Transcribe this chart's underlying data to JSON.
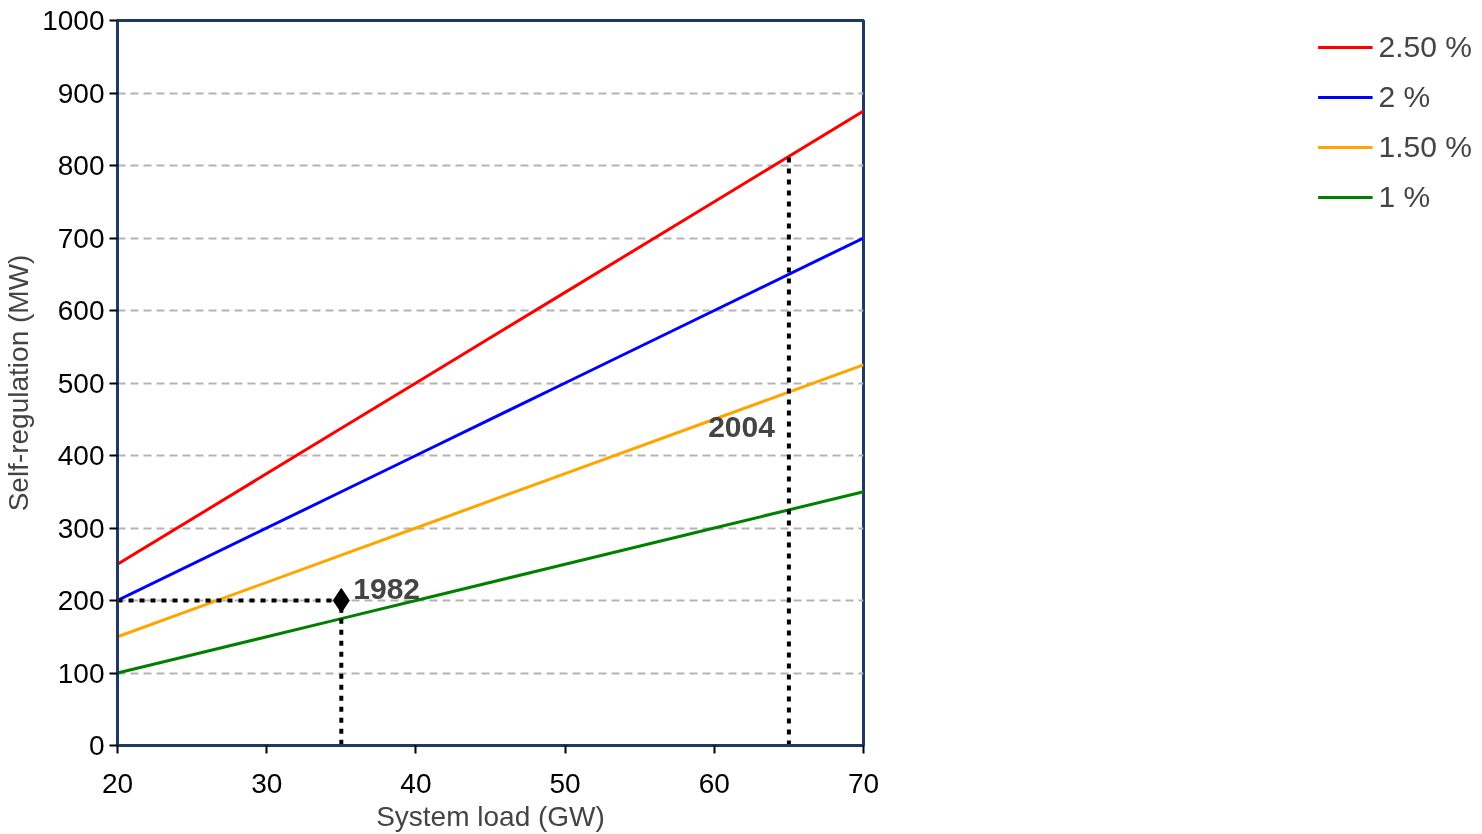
{
  "chart_data": {
    "type": "line",
    "xlabel": "System load (GW)",
    "ylabel": "Self-regulation (MW)",
    "x": [
      20,
      35,
      40,
      50,
      60,
      70
    ],
    "series": [
      {
        "name": "2.50 %",
        "color": "#ff0000",
        "values": [
          250,
          437.5,
          500,
          625,
          750,
          875
        ]
      },
      {
        "name": "2 %",
        "color": "#0000ff",
        "values": [
          200,
          350,
          400,
          500,
          600,
          700
        ]
      },
      {
        "name": "1.50 %",
        "color": "#ffa500",
        "values": [
          150,
          262.5,
          300,
          375,
          450,
          525
        ]
      },
      {
        "name": "1 %",
        "color": "#008000",
        "values": [
          100,
          175,
          200,
          250,
          300,
          350
        ]
      },
      {
        "color": "#000000",
        "x": [
          20,
          35,
          35
        ],
        "values": [
          200,
          200,
          0
        ],
        "line_style": "dotted"
      },
      {
        "color": "#000000",
        "x": [
          65,
          65
        ],
        "values": [
          0,
          812.5
        ],
        "line_style": "dotted"
      },
      {
        "type": "scatter",
        "color": "#000000",
        "x": [
          35
        ],
        "values": [
          200
        ],
        "marker": "diamond"
      }
    ],
    "annotations": [
      {
        "text": "1982",
        "x": 35,
        "y": 200
      },
      {
        "text": "2004",
        "x": 65,
        "y": 440
      }
    ],
    "xlim": [
      20,
      70
    ],
    "xticks": [
      20,
      30,
      40,
      50,
      60,
      70
    ],
    "ylim": [
      0,
      1000
    ],
    "yticks": [
      0,
      100,
      200,
      300,
      400,
      500,
      600,
      700,
      800,
      900,
      1000
    ],
    "grid": "y",
    "legend": "right",
    "line_style": "solid"
  }
}
